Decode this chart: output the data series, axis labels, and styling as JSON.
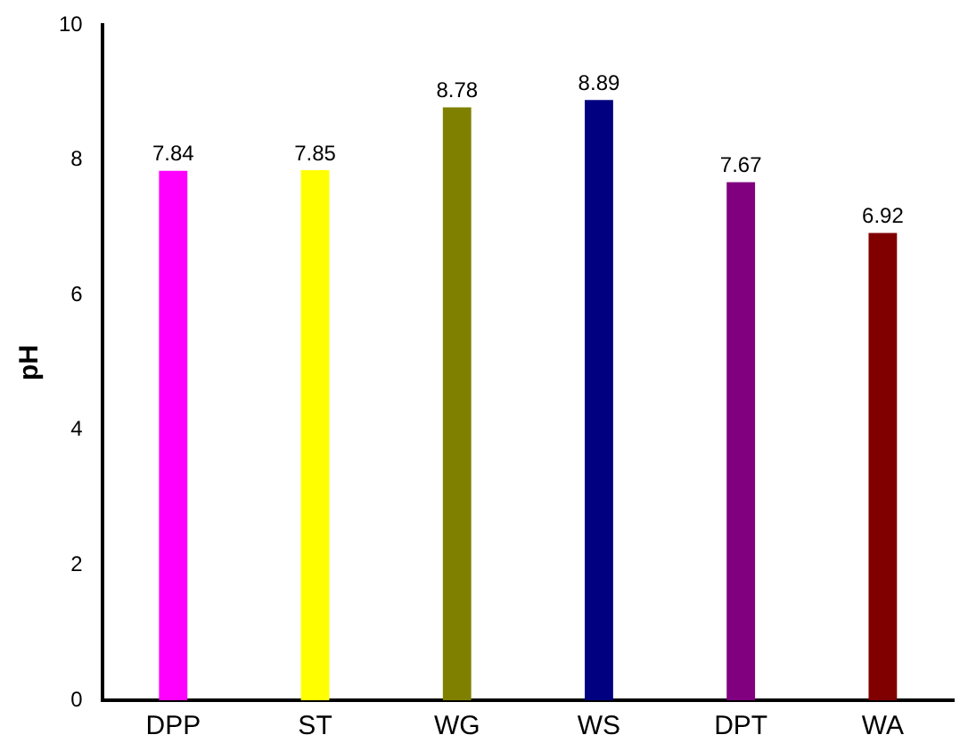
{
  "chart_data": {
    "type": "bar",
    "ylabel": "pH",
    "categories": [
      "DPP",
      "ST",
      "WG",
      "WS",
      "DPT",
      "WA"
    ],
    "values": [
      7.84,
      7.85,
      8.78,
      8.89,
      7.67,
      6.92
    ],
    "colors": [
      "#ff00ff",
      "#ffff00",
      "#808000",
      "#000080",
      "#800080",
      "#800000"
    ],
    "ylim": [
      0,
      10
    ],
    "yticks": [
      0,
      2,
      4,
      6,
      8,
      10
    ],
    "grid": false,
    "legend": false,
    "data_labels": true
  }
}
